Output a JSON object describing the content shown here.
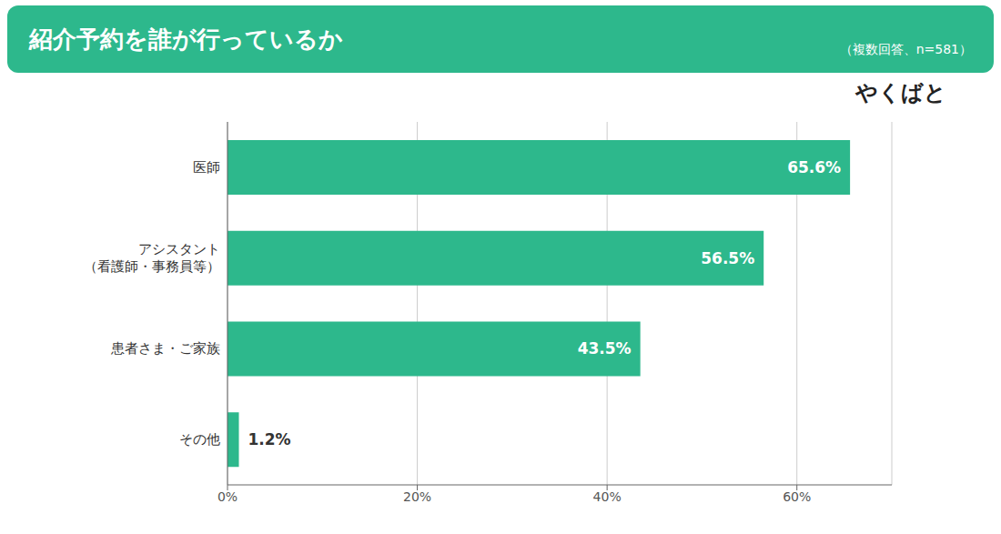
{
  "chart_data": {
    "type": "bar",
    "orientation": "horizontal",
    "title": "紹介予約を誰が行っているか",
    "subtitle": "（複数回答、n=581）",
    "annotations": [
      "やくばと"
    ],
    "categories": [
      "医師",
      "アシスタント\n（看護師・事務員等）",
      "患者さま・ご家族",
      "その他"
    ],
    "values": [
      65.6,
      56.5,
      43.5,
      1.2
    ],
    "value_labels": [
      "65.6%",
      "56.5%",
      "43.5%",
      "1.2%"
    ],
    "data_labels": true,
    "color": "#2DB88C",
    "xlim": [
      0,
      70
    ],
    "xticks": [
      {
        "value": 0,
        "label": "0%"
      },
      {
        "value": 20,
        "label": "20%"
      },
      {
        "value": 40,
        "label": "40%"
      },
      {
        "value": 60,
        "label": "60%"
      }
    ],
    "grid": true
  }
}
